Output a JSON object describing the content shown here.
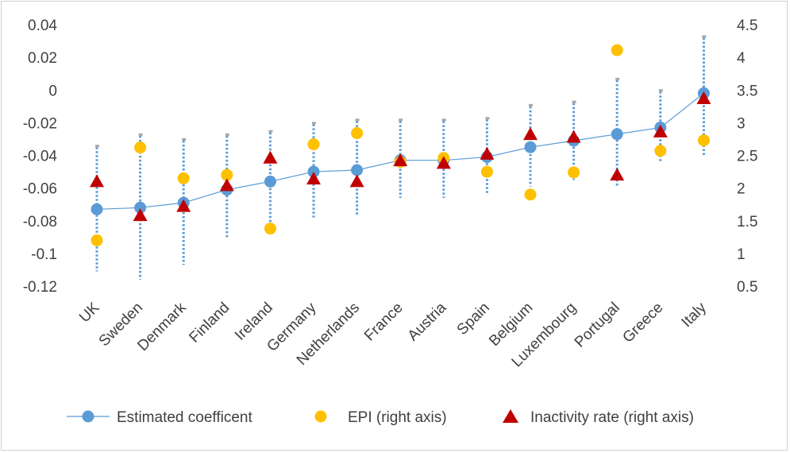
{
  "chart_data": {
    "type": "scatter",
    "title": "",
    "categories": [
      "UK",
      "Sweden",
      "Denmark",
      "Finland",
      "Ireland",
      "Germany",
      "Netherlands",
      "France",
      "Austria",
      "Spain",
      "Belgium",
      "Luxembourg",
      "Portugal",
      "Greece",
      "Italy"
    ],
    "y_left": {
      "ylim": [
        -0.12,
        0.04
      ],
      "ticks": [
        "0.04",
        "0.02",
        "0",
        "-0.02",
        "-0.04",
        "-0.06",
        "-0.08",
        "-0.1",
        "-0.12"
      ],
      "tick_values": [
        0.04,
        0.02,
        0,
        -0.02,
        -0.04,
        -0.06,
        -0.08,
        -0.1,
        -0.12
      ]
    },
    "y_right": {
      "ylim": [
        0.5,
        4.5
      ],
      "ticks": [
        "4.5",
        "4",
        "3.5",
        "3",
        "2.5",
        "2",
        "1.5",
        "1",
        "0.5"
      ],
      "tick_values": [
        4.5,
        4,
        3.5,
        3,
        2.5,
        2,
        1.5,
        1,
        0.5
      ]
    },
    "series": [
      {
        "name": "Estimated coefficent",
        "axis": "left",
        "values": [
          -0.073,
          -0.072,
          -0.069,
          -0.061,
          -0.056,
          -0.05,
          -0.049,
          -0.043,
          -0.043,
          -0.041,
          -0.035,
          -0.031,
          -0.027,
          -0.023,
          -0.002
        ],
        "ci_low": [
          -0.111,
          -0.116,
          -0.107,
          -0.091,
          -0.082,
          -0.078,
          -0.077,
          -0.066,
          -0.066,
          -0.063,
          -0.059,
          -0.055,
          -0.059,
          -0.044,
          -0.041
        ],
        "ci_high": [
          -0.035,
          -0.028,
          -0.031,
          -0.028,
          -0.026,
          -0.021,
          -0.019,
          -0.019,
          -0.019,
          -0.018,
          -0.01,
          -0.008,
          0.006,
          -0.001,
          0.032
        ],
        "color": "#5b9bd5"
      },
      {
        "name": "EPI (right axis)",
        "axis": "right",
        "values": [
          1.2,
          2.62,
          2.15,
          2.2,
          1.38,
          2.67,
          2.84,
          2.4,
          2.46,
          2.25,
          1.9,
          2.24,
          4.11,
          2.57,
          2.73
        ],
        "color": "#ffc000"
      },
      {
        "name": "Inactivity rate (right axis)",
        "axis": "right",
        "values": [
          2.1,
          1.58,
          1.72,
          2.04,
          2.46,
          2.14,
          2.1,
          2.42,
          2.38,
          2.52,
          2.82,
          2.78,
          2.2,
          2.86,
          3.37
        ],
        "color": "#c00000"
      }
    ],
    "legend_position": "bottom",
    "grid": false
  }
}
